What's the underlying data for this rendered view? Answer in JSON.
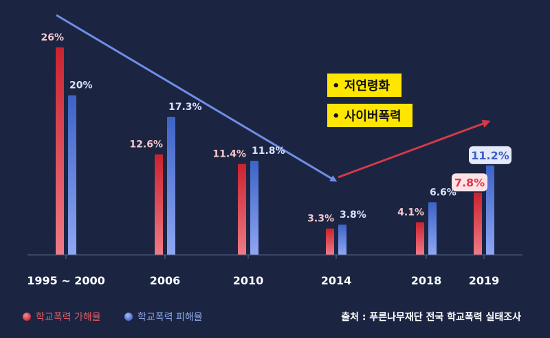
{
  "chart_data": {
    "type": "bar",
    "categories": [
      "1995 ~ 2000",
      "2006",
      "2010",
      "2014",
      "2018",
      "2019"
    ],
    "series": [
      {
        "name": "학교폭력 가해율",
        "values": [
          26,
          12.6,
          11.4,
          3.3,
          4.1,
          7.8
        ],
        "labels": [
          "26%",
          "12.6%",
          "11.4%",
          "3.3%",
          "4.1%",
          "7.8%"
        ],
        "color": "#d9343f"
      },
      {
        "name": "학교폭력 피해율",
        "values": [
          20,
          17.3,
          11.8,
          3.8,
          6.6,
          11.2
        ],
        "labels": [
          "20%",
          "17.3%",
          "11.8%",
          "3.8%",
          "6.6%",
          "11.2%"
        ],
        "color": "#4a6fd1"
      }
    ],
    "ylim": [
      0,
      27
    ],
    "highlighted_category": "2019",
    "annotations": [
      "• 저연령화",
      "• 사이버폭력"
    ],
    "source": "출처 : 푸른나무재단 전국 학교폭력 실태조사"
  },
  "colors": {
    "background": "#1b2542",
    "offender": "#d9343f",
    "victim": "#4a6fd1",
    "trend_down": "#6f8ee6",
    "trend_up": "#d23a4a",
    "note_bg": "#ffe600"
  }
}
